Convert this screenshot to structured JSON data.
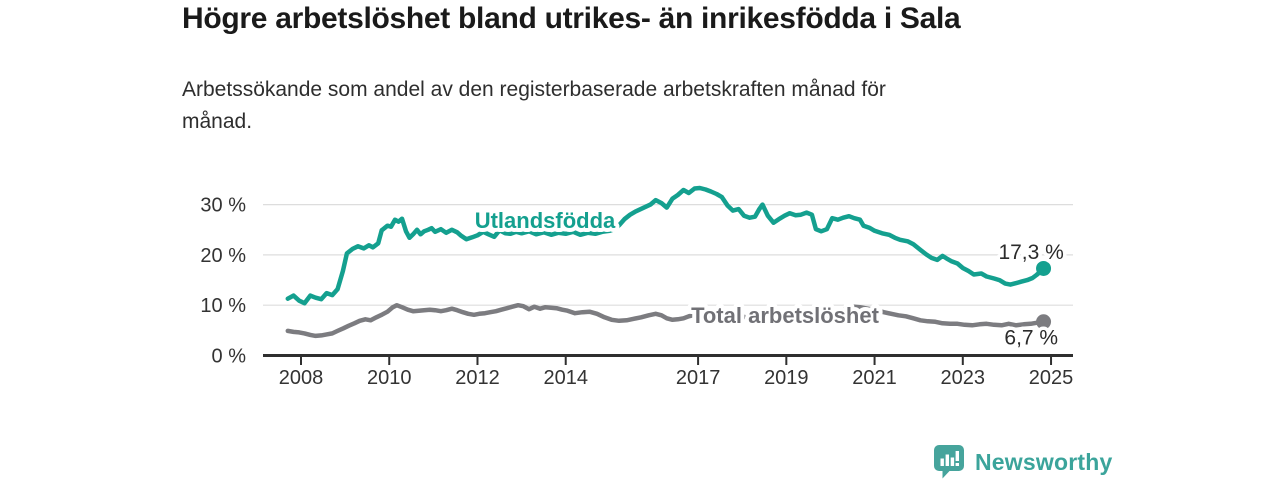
{
  "header": {
    "title": "Högre arbetslöshet bland utrikes- än inrikesfödda i Sala",
    "subtitle_lines": [
      "Arbetssökande som andel av den registerbaserade arbetskraften månad för",
      "månad."
    ]
  },
  "footer": {
    "brand": "Newsworthy"
  },
  "colors": {
    "foreign_line": "#14a08f",
    "total_line": "#7c7c80",
    "total_label": "#717176",
    "grid": "#dddddd",
    "axis": "#2f2f2f",
    "tick_text": "#333333",
    "value_text": "#2b2b2b",
    "brand_teal": "#46a49c"
  },
  "chart_data": {
    "type": "line",
    "title": "Högre arbetslöshet bland utrikes- än inrikesfödda i Sala",
    "subtitle": "Arbetssökande som andel av den registerbaserade arbetskraften månad för månad.",
    "xlabel": "",
    "ylabel": "",
    "grid": true,
    "xlim": [
      2007.5,
      2025.6
    ],
    "ylim": [
      0,
      34
    ],
    "y_ticks": [
      0,
      10,
      20,
      30
    ],
    "y_tick_suffix": " %",
    "x_ticks": [
      2008,
      2010,
      2012,
      2014,
      2017,
      2019,
      2021,
      2023,
      2025
    ],
    "series": [
      {
        "name": "Utlandsfödda",
        "color": "#14a08f",
        "label_color": "#14a08f",
        "label_pos": {
          "x": 2013.53,
          "y": 25.35
        },
        "end_value_label": "17,3 %",
        "end_label_pos": {
          "x": 2025.29,
          "y": 19.18
        },
        "end_value": 17.3,
        "points": [
          [
            2007.7,
            11.3
          ],
          [
            2007.83,
            11.9
          ],
          [
            2007.96,
            10.9
          ],
          [
            2008.08,
            10.4
          ],
          [
            2008.21,
            11.9
          ],
          [
            2008.33,
            11.5
          ],
          [
            2008.46,
            11.2
          ],
          [
            2008.58,
            12.4
          ],
          [
            2008.71,
            12.0
          ],
          [
            2008.83,
            13.2
          ],
          [
            2008.95,
            16.8
          ],
          [
            2009.04,
            20.3
          ],
          [
            2009.17,
            21.2
          ],
          [
            2009.29,
            21.7
          ],
          [
            2009.42,
            21.3
          ],
          [
            2009.54,
            21.9
          ],
          [
            2009.63,
            21.5
          ],
          [
            2009.75,
            22.3
          ],
          [
            2009.83,
            24.9
          ],
          [
            2009.96,
            25.8
          ],
          [
            2010.04,
            25.6
          ],
          [
            2010.13,
            27.0
          ],
          [
            2010.21,
            26.6
          ],
          [
            2010.29,
            27.2
          ],
          [
            2010.38,
            24.7
          ],
          [
            2010.46,
            23.4
          ],
          [
            2010.54,
            24.1
          ],
          [
            2010.63,
            25.0
          ],
          [
            2010.71,
            24.1
          ],
          [
            2010.79,
            24.7
          ],
          [
            2010.88,
            25.0
          ],
          [
            2010.96,
            25.3
          ],
          [
            2011.04,
            24.6
          ],
          [
            2011.17,
            25.1
          ],
          [
            2011.29,
            24.4
          ],
          [
            2011.42,
            25.0
          ],
          [
            2011.54,
            24.5
          ],
          [
            2011.63,
            23.8
          ],
          [
            2011.75,
            23.1
          ],
          [
            2011.88,
            23.5
          ],
          [
            2012.0,
            23.9
          ],
          [
            2012.13,
            24.6
          ],
          [
            2012.25,
            24.1
          ],
          [
            2012.38,
            23.6
          ],
          [
            2012.5,
            24.9
          ],
          [
            2012.63,
            24.3
          ],
          [
            2012.75,
            24.2
          ],
          [
            2012.88,
            24.6
          ],
          [
            2013.0,
            24.3
          ],
          [
            2013.17,
            24.7
          ],
          [
            2013.33,
            24.1
          ],
          [
            2013.5,
            24.5
          ],
          [
            2013.67,
            24.0
          ],
          [
            2013.83,
            24.4
          ],
          [
            2014.0,
            24.2
          ],
          [
            2014.17,
            24.6
          ],
          [
            2014.33,
            24.0
          ],
          [
            2014.5,
            24.4
          ],
          [
            2014.67,
            24.2
          ],
          [
            2014.83,
            24.6
          ],
          [
            2015.0,
            24.8
          ],
          [
            2015.13,
            25.2
          ],
          [
            2015.21,
            25.9
          ],
          [
            2015.33,
            27.1
          ],
          [
            2015.46,
            28.0
          ],
          [
            2015.58,
            28.6
          ],
          [
            2015.75,
            29.3
          ],
          [
            2015.92,
            30.0
          ],
          [
            2016.04,
            30.9
          ],
          [
            2016.17,
            30.3
          ],
          [
            2016.29,
            29.4
          ],
          [
            2016.42,
            31.2
          ],
          [
            2016.54,
            31.9
          ],
          [
            2016.67,
            32.9
          ],
          [
            2016.79,
            32.3
          ],
          [
            2016.92,
            33.2
          ],
          [
            2017.04,
            33.3
          ],
          [
            2017.17,
            33.0
          ],
          [
            2017.29,
            32.6
          ],
          [
            2017.42,
            32.1
          ],
          [
            2017.54,
            31.5
          ],
          [
            2017.67,
            29.8
          ],
          [
            2017.79,
            28.8
          ],
          [
            2017.92,
            29.1
          ],
          [
            2018.04,
            27.8
          ],
          [
            2018.17,
            27.4
          ],
          [
            2018.29,
            27.6
          ],
          [
            2018.38,
            29.0
          ],
          [
            2018.46,
            30.0
          ],
          [
            2018.58,
            27.8
          ],
          [
            2018.71,
            26.4
          ],
          [
            2018.83,
            27.1
          ],
          [
            2018.96,
            27.8
          ],
          [
            2019.08,
            28.3
          ],
          [
            2019.21,
            27.9
          ],
          [
            2019.33,
            28.0
          ],
          [
            2019.46,
            28.4
          ],
          [
            2019.58,
            28.0
          ],
          [
            2019.67,
            25.1
          ],
          [
            2019.79,
            24.7
          ],
          [
            2019.92,
            25.1
          ],
          [
            2020.04,
            27.3
          ],
          [
            2020.17,
            27.0
          ],
          [
            2020.29,
            27.4
          ],
          [
            2020.42,
            27.7
          ],
          [
            2020.54,
            27.3
          ],
          [
            2020.67,
            27.0
          ],
          [
            2020.75,
            25.8
          ],
          [
            2020.88,
            25.4
          ],
          [
            2021.0,
            24.8
          ],
          [
            2021.17,
            24.3
          ],
          [
            2021.33,
            24.0
          ],
          [
            2021.46,
            23.4
          ],
          [
            2021.58,
            23.0
          ],
          [
            2021.75,
            22.7
          ],
          [
            2021.88,
            22.1
          ],
          [
            2022.04,
            21.0
          ],
          [
            2022.17,
            20.1
          ],
          [
            2022.29,
            19.4
          ],
          [
            2022.42,
            19.0
          ],
          [
            2022.54,
            19.8
          ],
          [
            2022.63,
            19.3
          ],
          [
            2022.75,
            18.7
          ],
          [
            2022.88,
            18.3
          ],
          [
            2023.0,
            17.4
          ],
          [
            2023.13,
            16.8
          ],
          [
            2023.25,
            16.1
          ],
          [
            2023.42,
            16.3
          ],
          [
            2023.54,
            15.7
          ],
          [
            2023.71,
            15.3
          ],
          [
            2023.83,
            15.0
          ],
          [
            2023.96,
            14.3
          ],
          [
            2024.08,
            14.1
          ],
          [
            2024.21,
            14.4
          ],
          [
            2024.33,
            14.7
          ],
          [
            2024.46,
            15.0
          ],
          [
            2024.58,
            15.4
          ],
          [
            2024.67,
            16.0
          ],
          [
            2024.75,
            16.6
          ],
          [
            2024.83,
            17.3
          ]
        ]
      },
      {
        "name": "Total arbetslöshet",
        "color": "#7c7c80",
        "label_color": "#717176",
        "label_pos": {
          "x": 2018.97,
          "y": 6.46
        },
        "end_value_label": "6,7 %",
        "end_label_pos": {
          "x": 2025.16,
          "y": 2.19
        },
        "end_value": 6.7,
        "points": [
          [
            2007.7,
            4.9
          ],
          [
            2007.83,
            4.7
          ],
          [
            2007.96,
            4.6
          ],
          [
            2008.08,
            4.4
          ],
          [
            2008.21,
            4.1
          ],
          [
            2008.33,
            3.9
          ],
          [
            2008.46,
            4.0
          ],
          [
            2008.58,
            4.2
          ],
          [
            2008.71,
            4.4
          ],
          [
            2008.83,
            4.9
          ],
          [
            2008.96,
            5.4
          ],
          [
            2009.08,
            5.9
          ],
          [
            2009.21,
            6.4
          ],
          [
            2009.33,
            6.9
          ],
          [
            2009.46,
            7.2
          ],
          [
            2009.58,
            7.0
          ],
          [
            2009.71,
            7.6
          ],
          [
            2009.83,
            8.1
          ],
          [
            2009.96,
            8.7
          ],
          [
            2010.08,
            9.6
          ],
          [
            2010.17,
            10.0
          ],
          [
            2010.29,
            9.6
          ],
          [
            2010.42,
            9.1
          ],
          [
            2010.54,
            8.8
          ],
          [
            2010.67,
            8.9
          ],
          [
            2010.79,
            9.0
          ],
          [
            2010.92,
            9.1
          ],
          [
            2011.04,
            9.0
          ],
          [
            2011.17,
            8.8
          ],
          [
            2011.29,
            9.0
          ],
          [
            2011.42,
            9.3
          ],
          [
            2011.54,
            9.0
          ],
          [
            2011.67,
            8.6
          ],
          [
            2011.79,
            8.3
          ],
          [
            2011.92,
            8.1
          ],
          [
            2012.04,
            8.3
          ],
          [
            2012.17,
            8.4
          ],
          [
            2012.29,
            8.6
          ],
          [
            2012.42,
            8.8
          ],
          [
            2012.54,
            9.1
          ],
          [
            2012.67,
            9.4
          ],
          [
            2012.79,
            9.7
          ],
          [
            2012.92,
            10.0
          ],
          [
            2013.04,
            9.8
          ],
          [
            2013.17,
            9.2
          ],
          [
            2013.29,
            9.7
          ],
          [
            2013.42,
            9.3
          ],
          [
            2013.54,
            9.6
          ],
          [
            2013.67,
            9.5
          ],
          [
            2013.79,
            9.4
          ],
          [
            2013.92,
            9.1
          ],
          [
            2014.04,
            8.9
          ],
          [
            2014.21,
            8.4
          ],
          [
            2014.38,
            8.6
          ],
          [
            2014.54,
            8.7
          ],
          [
            2014.71,
            8.3
          ],
          [
            2014.88,
            7.6
          ],
          [
            2015.04,
            7.1
          ],
          [
            2015.21,
            6.9
          ],
          [
            2015.38,
            7.0
          ],
          [
            2015.54,
            7.3
          ],
          [
            2015.71,
            7.6
          ],
          [
            2015.88,
            8.0
          ],
          [
            2016.04,
            8.3
          ],
          [
            2016.17,
            8.0
          ],
          [
            2016.29,
            7.4
          ],
          [
            2016.42,
            7.1
          ],
          [
            2016.54,
            7.2
          ],
          [
            2016.67,
            7.4
          ],
          [
            2016.79,
            7.8
          ],
          [
            2016.92,
            8.1
          ],
          [
            2017.04,
            8.2
          ],
          [
            2017.21,
            8.0
          ],
          [
            2017.38,
            7.8
          ],
          [
            2017.54,
            7.6
          ],
          [
            2017.71,
            7.5
          ],
          [
            2017.88,
            7.6
          ],
          [
            2018.04,
            7.7
          ],
          [
            2018.21,
            7.4
          ],
          [
            2018.38,
            7.2
          ],
          [
            2018.54,
            7.0
          ],
          [
            2018.71,
            7.1
          ],
          [
            2018.88,
            7.0
          ],
          [
            2019.04,
            7.0
          ],
          [
            2019.21,
            6.9
          ],
          [
            2019.38,
            7.0
          ],
          [
            2019.54,
            7.2
          ],
          [
            2019.71,
            7.4
          ],
          [
            2019.88,
            7.5
          ],
          [
            2020.04,
            7.7
          ],
          [
            2020.17,
            8.4
          ],
          [
            2020.29,
            9.1
          ],
          [
            2020.42,
            9.5
          ],
          [
            2020.54,
            9.7
          ],
          [
            2020.67,
            9.6
          ],
          [
            2020.79,
            9.4
          ],
          [
            2020.92,
            9.2
          ],
          [
            2021.04,
            9.0
          ],
          [
            2021.21,
            8.6
          ],
          [
            2021.38,
            8.3
          ],
          [
            2021.54,
            8.0
          ],
          [
            2021.71,
            7.8
          ],
          [
            2021.88,
            7.4
          ],
          [
            2022.04,
            7.0
          ],
          [
            2022.21,
            6.8
          ],
          [
            2022.38,
            6.7
          ],
          [
            2022.54,
            6.4
          ],
          [
            2022.71,
            6.3
          ],
          [
            2022.88,
            6.3
          ],
          [
            2023.04,
            6.1
          ],
          [
            2023.21,
            6.0
          ],
          [
            2023.38,
            6.2
          ],
          [
            2023.54,
            6.3
          ],
          [
            2023.71,
            6.1
          ],
          [
            2023.88,
            6.0
          ],
          [
            2024.04,
            6.3
          ],
          [
            2024.21,
            6.0
          ],
          [
            2024.38,
            6.2
          ],
          [
            2024.54,
            6.3
          ],
          [
            2024.67,
            6.5
          ],
          [
            2024.83,
            6.7
          ]
        ]
      }
    ]
  }
}
